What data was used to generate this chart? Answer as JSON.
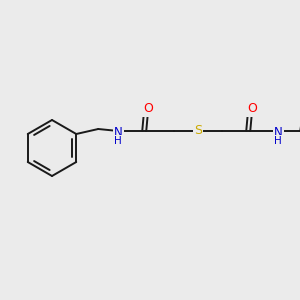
{
  "background_color": "#ebebeb",
  "bond_color": "#1a1a1a",
  "atom_colors": {
    "O": "#ff0000",
    "N": "#0000cc",
    "H": "#0000cc",
    "S": "#ccaa00",
    "C": "#1a1a1a"
  },
  "bond_width": 1.4,
  "figsize": [
    3.0,
    3.0
  ],
  "dpi": 100
}
